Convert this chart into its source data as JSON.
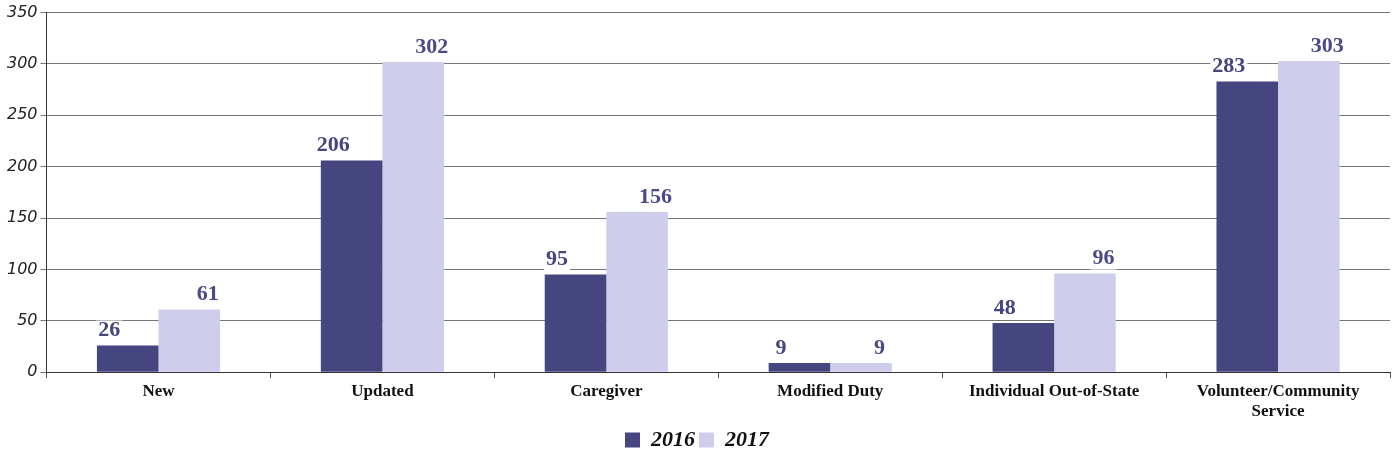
{
  "chart_data": {
    "type": "bar",
    "categories": [
      "New",
      "Updated",
      "Caregiver",
      "Modified Duty",
      "Individual Out-of-State",
      "Volunteer/Community Service"
    ],
    "series": [
      {
        "name": "2016",
        "color": "#45457f",
        "values": [
          26,
          206,
          95,
          9,
          48,
          283
        ]
      },
      {
        "name": "2017",
        "color": "#cfcdec",
        "values": [
          61,
          302,
          156,
          9,
          96,
          303
        ]
      }
    ],
    "ylim": [
      0,
      350
    ],
    "yticks": [
      0,
      50,
      100,
      150,
      200,
      250,
      300,
      350
    ],
    "grid": "y",
    "legend": "bottom",
    "data_labels": true
  }
}
